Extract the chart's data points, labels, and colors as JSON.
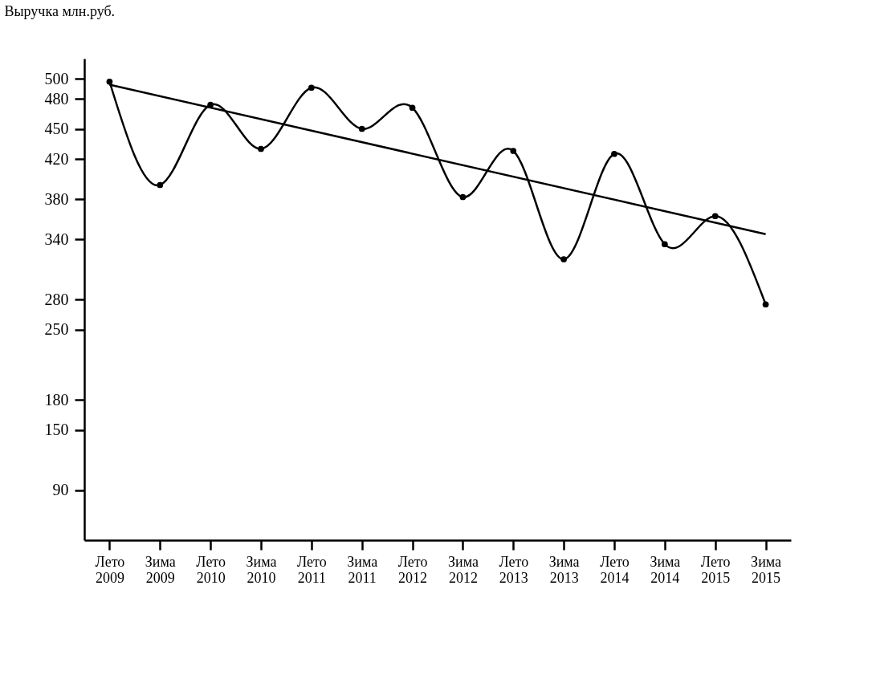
{
  "chart_data": {
    "type": "line",
    "ylabel": "Выручка млн.руб.",
    "categories": [
      "Лето 2009",
      "Зима 2009",
      "Лето 2010",
      "Зима 2010",
      "Лето 2011",
      "Зима 2011",
      "Лето 2012",
      "Зима 2012",
      "Лето 2013",
      "Зима 2013",
      "Лето 2014",
      "Зима 2014",
      "Лето 2015",
      "Зима 2015"
    ],
    "series": [
      {
        "color": "#000000",
        "marker": "circle",
        "values": [
          497,
          394,
          474,
          430,
          491,
          450,
          471,
          382,
          428,
          320,
          425,
          335,
          363,
          275
        ]
      },
      {
        "type": "line",
        "color": "#000000",
        "marker": "none",
        "x": [
          "Лето 2009",
          "Зима 2015"
        ],
        "values": [
          494,
          345
        ]
      }
    ],
    "ylim": [
      40,
      520
    ],
    "yticks": [
      90,
      150,
      180,
      250,
      280,
      340,
      380,
      420,
      450,
      480,
      500
    ],
    "line_style": "solid"
  }
}
